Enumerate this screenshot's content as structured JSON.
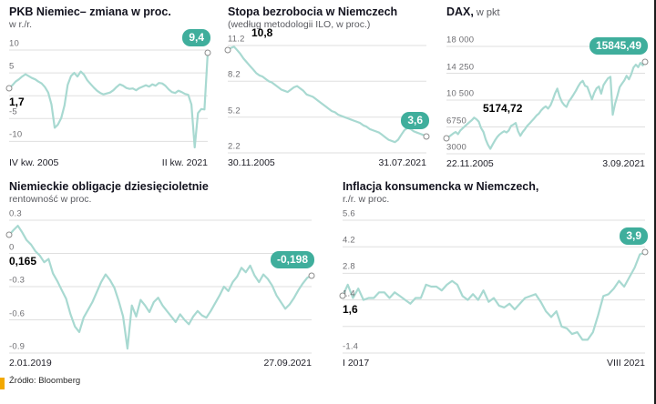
{
  "page": {
    "source": "Źródło: Bloomberg"
  },
  "colors": {
    "line": "#a8d9d1",
    "badge": "#3fae9c",
    "grid": "#dfdfdf",
    "marker_border": "#8c8c8c",
    "accent": "#f2a800"
  },
  "chart_data": [
    {
      "type": "line",
      "title": "PKB Niemiec– zmiana w proc.",
      "subtitle": "w r./r.",
      "x_start": "IV kw. 2005",
      "x_end": "II kw. 2021",
      "start_label": "1,7",
      "end_label": "9,4",
      "start_label_dx": 0,
      "start_label_dy": 8,
      "ylim": [
        -12.5,
        11
      ],
      "yticks": [
        {
          "v": 10,
          "label": "10"
        },
        {
          "v": 5,
          "label": "5"
        },
        {
          "v": 0,
          "label": ""
        },
        {
          "v": -5,
          "label": "-5"
        },
        {
          "v": -10,
          "label": "-10"
        }
      ],
      "values": [
        1.7,
        2.3,
        3.1,
        3.6,
        4.2,
        4.7,
        4.3,
        3.9,
        3.6,
        3.1,
        2.7,
        1.9,
        0.7,
        -1.9,
        -7.0,
        -6.3,
        -4.9,
        -2.1,
        2.4,
        4.3,
        5.0,
        4.2,
        5.3,
        4.6,
        3.4,
        2.6,
        1.8,
        1.1,
        0.6,
        0.3,
        0.5,
        0.7,
        1.2,
        1.9,
        2.5,
        2.2,
        1.7,
        1.5,
        1.6,
        1.2,
        1.7,
        2.0,
        2.3,
        2.0,
        2.5,
        2.2,
        2.8,
        2.7,
        2.2,
        1.4,
        0.8,
        0.6,
        1.1,
        0.8,
        0.4,
        0.2,
        -1.9,
        -11.3,
        -3.8,
        -2.9,
        -3.0,
        9.4
      ]
    },
    {
      "type": "line",
      "title": "Stopa bezrobocia w Niemczech",
      "subtitle": "(według metodologii ILO, w proc.)",
      "x_start": "30.11.2005",
      "x_end": "31.07.2021",
      "start_label": "10,8",
      "end_label": "3,6",
      "start_label_dx": 26,
      "start_label_dy": -26,
      "ylim": [
        2.2,
        11.2
      ],
      "yticks": [
        {
          "v": 11.2,
          "label": "11.2"
        },
        {
          "v": 8.2,
          "label": "8.2"
        },
        {
          "v": 5.2,
          "label": "5.2"
        },
        {
          "v": 2.2,
          "label": "2.2"
        }
      ],
      "values": [
        10.8,
        11.0,
        11.1,
        10.8,
        10.5,
        10.1,
        9.8,
        9.5,
        9.2,
        8.9,
        8.7,
        8.6,
        8.4,
        8.2,
        8.1,
        7.9,
        7.7,
        7.5,
        7.4,
        7.3,
        7.5,
        7.7,
        7.8,
        7.6,
        7.4,
        7.1,
        7.0,
        6.9,
        6.7,
        6.5,
        6.3,
        6.1,
        5.9,
        5.7,
        5.6,
        5.4,
        5.3,
        5.2,
        5.1,
        5.0,
        4.9,
        4.8,
        4.7,
        4.5,
        4.4,
        4.2,
        4.1,
        4.0,
        3.9,
        3.7,
        3.5,
        3.3,
        3.2,
        3.1,
        3.3,
        3.7,
        4.1,
        4.3,
        4.2,
        4.0,
        3.9,
        3.8,
        3.7,
        3.6
      ]
    },
    {
      "type": "line",
      "title": "DAX,",
      "subtitle": " w pkt",
      "x_start": "22.11.2005",
      "x_end": "3.09.2021",
      "start_label": "5174,72",
      "end_label": "15845,49",
      "start_label_dx": 40,
      "start_label_dy": -40,
      "ylim": [
        3000,
        18000
      ],
      "yticks": [
        {
          "v": 18000,
          "label": "18 000"
        },
        {
          "v": 14250,
          "label": "14 250"
        },
        {
          "v": 10500,
          "label": "10 500"
        },
        {
          "v": 6750,
          "label": "6750"
        },
        {
          "v": 3000,
          "label": "3000"
        }
      ],
      "values": [
        5174.72,
        5350,
        5600,
        5850,
        6050,
        5750,
        6250,
        6550,
        6850,
        7150,
        7420,
        7700,
        8050,
        7820,
        7480,
        6600,
        6050,
        5000,
        4250,
        3700,
        4300,
        4850,
        5350,
        5700,
        5950,
        6150,
        5980,
        6250,
        6900,
        7080,
        7300,
        6150,
        5500,
        6050,
        6450,
        6900,
        7250,
        7600,
        7950,
        8350,
        8600,
        9050,
        9400,
        9620,
        9300,
        9750,
        10500,
        11400,
        12100,
        11000,
        10250,
        9800,
        9550,
        10300,
        10750,
        11250,
        11800,
        12400,
        12900,
        13200,
        12500,
        12350,
        11450,
        10600,
        11500,
        12150,
        12400,
        11400,
        12600,
        13100,
        13550,
        13750,
        8450,
        9950,
        11100,
        12300,
        12800,
        13250,
        13900,
        13400,
        14100,
        15050,
        15450,
        15100,
        15700,
        15350,
        15845.49
      ]
    },
    {
      "type": "line",
      "title": "Niemieckie obligacje dziesięcioletnie",
      "subtitle": "rentowność w proc.",
      "x_start": "2.01.2019",
      "x_end": "27.09.2021",
      "start_label": "0,165",
      "end_label": "-0,198",
      "start_label_dx": 0,
      "start_label_dy": 22,
      "ylim": [
        -0.9,
        0.3
      ],
      "yticks": [
        {
          "v": 0.3,
          "label": "0.3"
        },
        {
          "v": 0,
          "label": "0"
        },
        {
          "v": -0.3,
          "label": "-0.3"
        },
        {
          "v": -0.6,
          "label": "-0.6"
        },
        {
          "v": -0.9,
          "label": "-0.9"
        }
      ],
      "values": [
        0.165,
        0.21,
        0.25,
        0.19,
        0.12,
        0.08,
        0.02,
        -0.02,
        -0.08,
        -0.05,
        -0.18,
        -0.25,
        -0.33,
        -0.41,
        -0.55,
        -0.66,
        -0.71,
        -0.58,
        -0.51,
        -0.44,
        -0.35,
        -0.26,
        -0.19,
        -0.24,
        -0.31,
        -0.43,
        -0.57,
        -0.86,
        -0.47,
        -0.57,
        -0.42,
        -0.47,
        -0.53,
        -0.44,
        -0.4,
        -0.47,
        -0.52,
        -0.57,
        -0.62,
        -0.55,
        -0.6,
        -0.64,
        -0.57,
        -0.52,
        -0.56,
        -0.58,
        -0.52,
        -0.45,
        -0.38,
        -0.3,
        -0.34,
        -0.26,
        -0.21,
        -0.13,
        -0.17,
        -0.11,
        -0.2,
        -0.26,
        -0.19,
        -0.23,
        -0.29,
        -0.38,
        -0.44,
        -0.5,
        -0.46,
        -0.4,
        -0.33,
        -0.27,
        -0.22,
        -0.198
      ]
    },
    {
      "type": "line",
      "title": "Inflacja konsumencka w Niemczech,",
      "subtitle": "r./r. w proc.",
      "x_start": "I 2017",
      "x_end": "VIII 2021",
      "start_label": "1,6",
      "end_label": "3,9",
      "start_label_dx": 0,
      "start_label_dy": 8,
      "ylim": [
        -1.4,
        5.6
      ],
      "yticks": [
        {
          "v": 5.6,
          "label": "5.6"
        },
        {
          "v": 4.2,
          "label": "4.2"
        },
        {
          "v": 2.8,
          "label": "2.8"
        },
        {
          "v": 1.4,
          "label": "1.4"
        },
        {
          "v": 0,
          "label": ""
        },
        {
          "v": -1.4,
          "label": "-1.4"
        }
      ],
      "values": [
        1.6,
        2.2,
        1.5,
        2.0,
        1.4,
        1.5,
        1.5,
        1.8,
        1.8,
        1.5,
        1.8,
        1.6,
        1.4,
        1.2,
        1.5,
        1.5,
        2.2,
        2.1,
        2.1,
        1.9,
        2.2,
        2.4,
        2.2,
        1.6,
        1.4,
        1.7,
        1.4,
        1.9,
        1.3,
        1.5,
        1.1,
        1.0,
        1.2,
        0.9,
        1.2,
        1.5,
        1.6,
        1.7,
        1.3,
        0.8,
        0.5,
        0.8,
        0.0,
        -0.1,
        -0.4,
        -0.3,
        -0.7,
        -0.7,
        -0.3,
        0.6,
        1.6,
        1.7,
        2.0,
        2.4,
        2.1,
        2.6,
        3.1,
        3.8,
        3.9
      ]
    }
  ]
}
